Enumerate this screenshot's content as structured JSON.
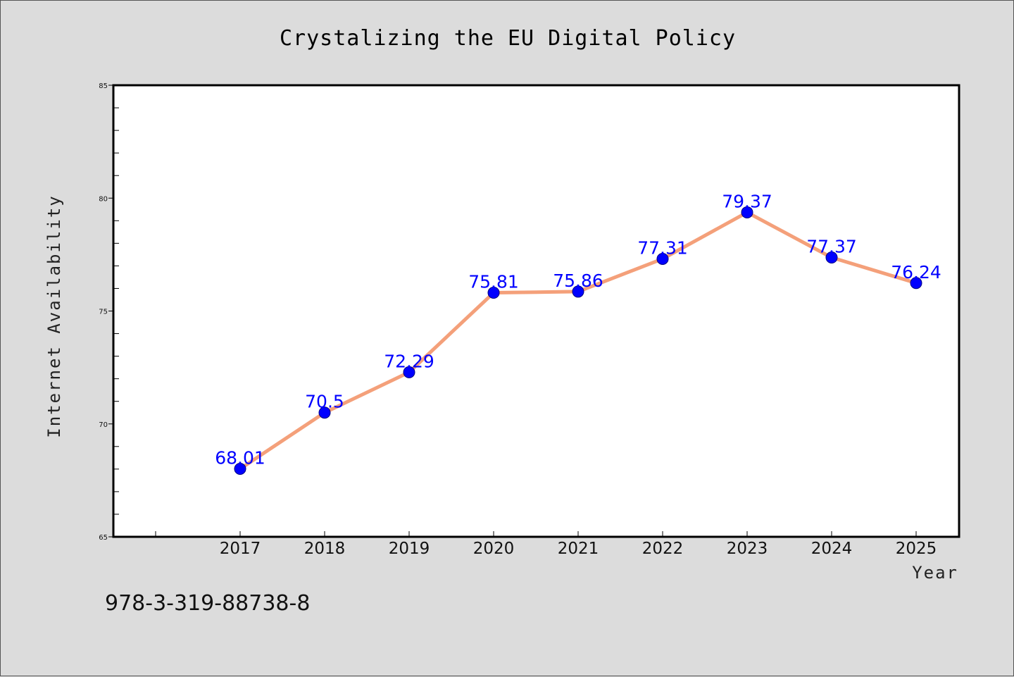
{
  "chart_data": {
    "type": "line",
    "title": "Crystalizing the EU Digital Policy",
    "xlabel": "Year",
    "ylabel": "Internet Availability",
    "categories": [
      "2017",
      "2018",
      "2019",
      "2020",
      "2021",
      "2022",
      "2023",
      "2024",
      "2025"
    ],
    "series": [
      {
        "values": [
          68.01,
          70.5,
          72.29,
          75.81,
          75.86,
          77.31,
          79.37,
          77.37,
          76.24
        ],
        "labels": [
          "68.01",
          "70.5",
          "72.29",
          "75.81",
          "75.86",
          "77.31",
          "79.37",
          "77.37",
          "76.24"
        ],
        "line_color": "#f4a07a",
        "marker_color": "#0000ff"
      }
    ],
    "ylim": [
      65,
      85
    ],
    "yticks": [
      "65",
      "70",
      "75",
      "80",
      "85"
    ],
    "grid": false,
    "legend": "none"
  },
  "footer": {
    "isbn": "978-3-319-88738-8"
  },
  "colors": {
    "background": "#dcdcdc",
    "plot_background": "#ffffff",
    "line": "#f4a07a",
    "marker": "#0000ff",
    "data_label": "#0000ff"
  }
}
